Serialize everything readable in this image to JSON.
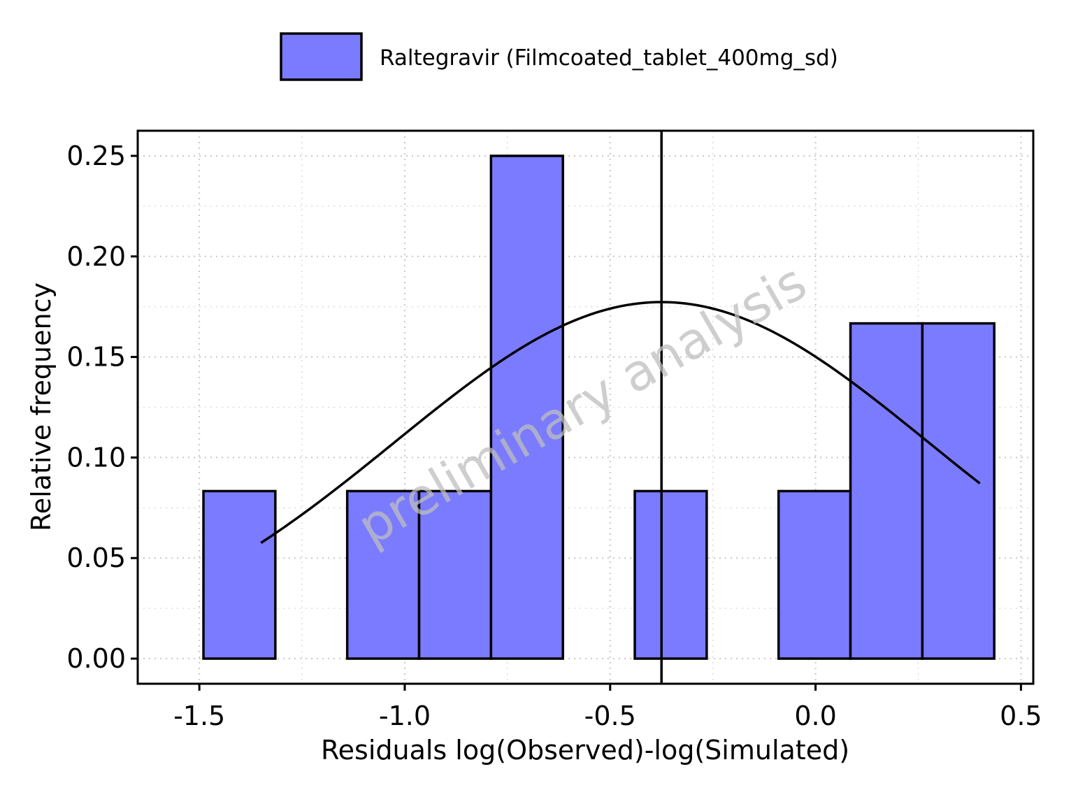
{
  "chart_data": {
    "type": "bar",
    "subtype": "histogram",
    "xlabel": "Residuals log(Observed)-log(Simulated)",
    "ylabel": "Relative frequency",
    "xlim": [
      -1.65,
      0.53
    ],
    "ylim": [
      -0.0125,
      0.2625
    ],
    "x_ticks": [
      -1.5,
      -1.0,
      -0.5,
      0.0,
      0.5
    ],
    "x_tick_labels": [
      "-1.5",
      "-1.0",
      "-0.5",
      "0.0",
      "0.5"
    ],
    "y_ticks": [
      0.0,
      0.05,
      0.1,
      0.15,
      0.2,
      0.25
    ],
    "y_tick_labels": [
      "0.00",
      "0.05",
      "0.10",
      "0.15",
      "0.20",
      "0.25"
    ],
    "grid": true,
    "legend_position": "top",
    "series": [
      {
        "name": "Raltegravir (Filmcoated_tablet_400mg_sd)",
        "color": "#7b7bff",
        "bins": [
          {
            "x0": -1.49,
            "x1": -1.315,
            "value": 0.0833
          },
          {
            "x0": -1.315,
            "x1": -1.14,
            "value": 0.0
          },
          {
            "x0": -1.14,
            "x1": -0.965,
            "value": 0.0833
          },
          {
            "x0": -0.965,
            "x1": -0.79,
            "value": 0.0833
          },
          {
            "x0": -0.79,
            "x1": -0.615,
            "value": 0.25
          },
          {
            "x0": -0.615,
            "x1": -0.44,
            "value": 0.0
          },
          {
            "x0": -0.44,
            "x1": -0.265,
            "value": 0.0833
          },
          {
            "x0": -0.265,
            "x1": -0.09,
            "value": 0.0
          },
          {
            "x0": -0.09,
            "x1": 0.085,
            "value": 0.0833
          },
          {
            "x0": 0.085,
            "x1": 0.26,
            "value": 0.1667
          },
          {
            "x0": 0.26,
            "x1": 0.435,
            "value": 0.1667
          }
        ]
      }
    ],
    "density_curve": {
      "type": "normal",
      "mean": -0.375,
      "sd": 0.65,
      "scale": 0.1773,
      "x_range": [
        -1.35,
        0.4
      ]
    },
    "vline": {
      "x": -0.375
    },
    "watermark": "preliminary analysis"
  }
}
